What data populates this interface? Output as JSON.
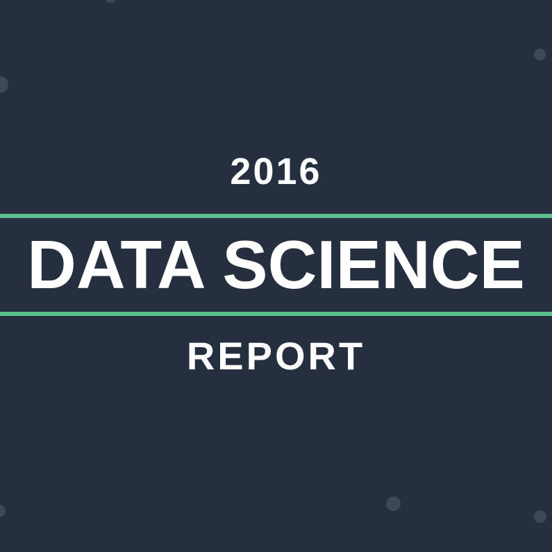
{
  "cover": {
    "year": "2016",
    "title": "DATA SCIENCE",
    "subtitle": "REPORT"
  },
  "colors": {
    "background": "#262f40",
    "accent_rule": "#5cc08f",
    "text": "#ffffff",
    "decorative_dot": "#3e4859"
  }
}
